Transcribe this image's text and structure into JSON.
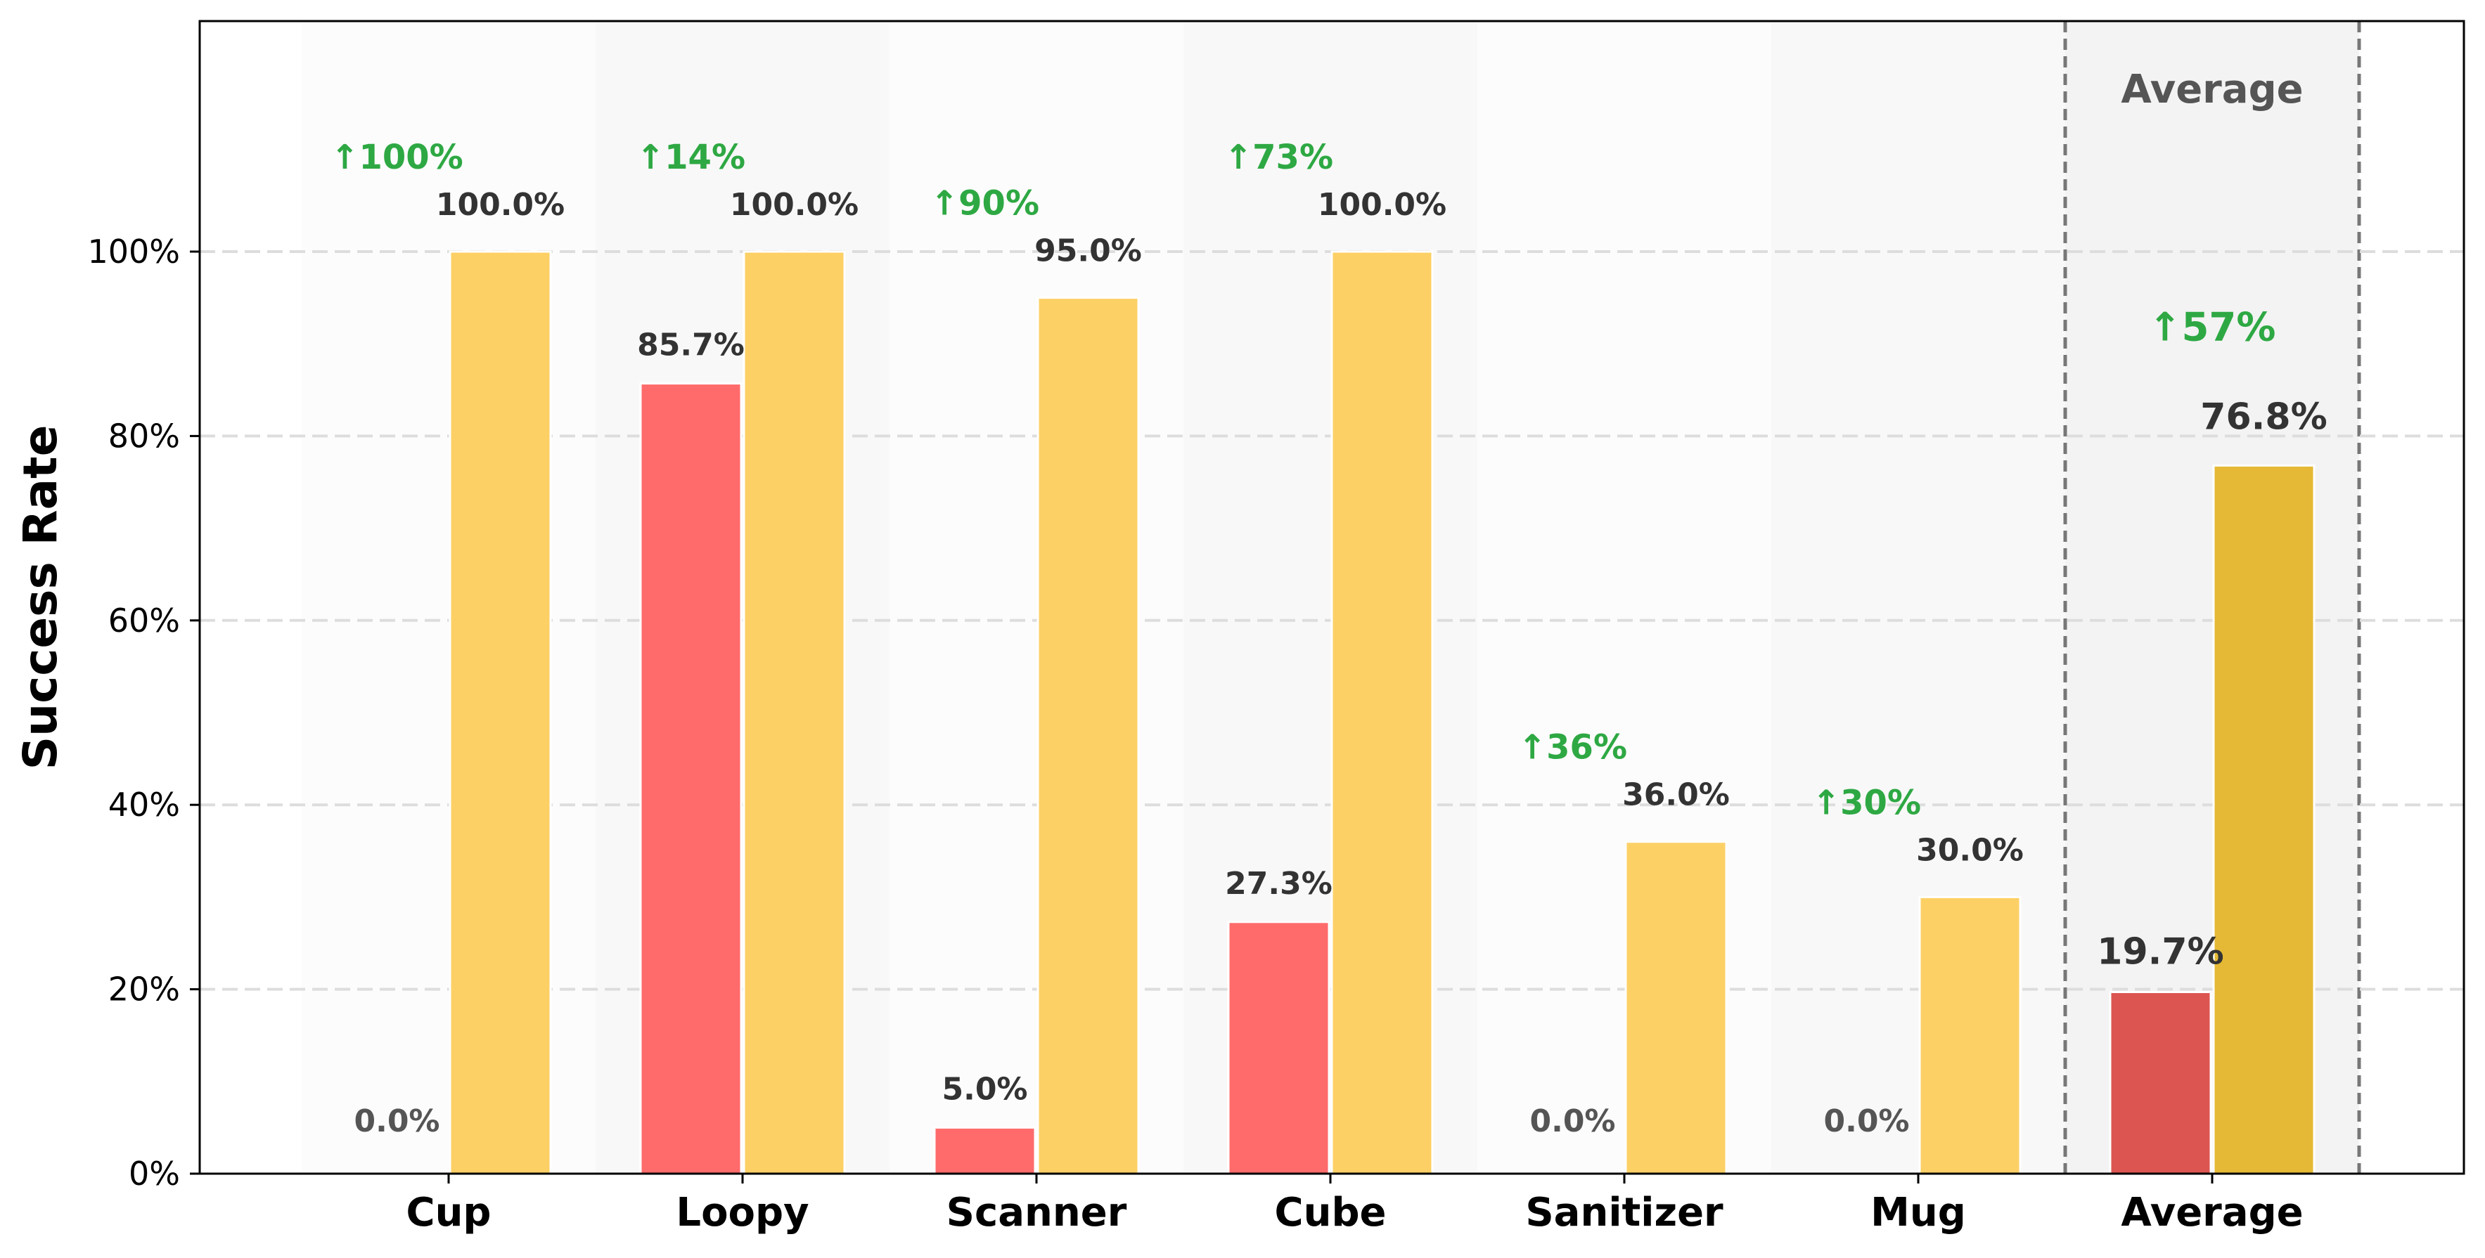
{
  "chart_data": {
    "type": "bar",
    "title": "",
    "xlabel": "",
    "ylabel": "Success Rate",
    "ylim": [
      0,
      125
    ],
    "yticks": [
      0,
      20,
      40,
      60,
      80,
      100
    ],
    "ytick_labels": [
      "0%",
      "20%",
      "40%",
      "60%",
      "80%",
      "100%"
    ],
    "grid": "horizontal-dashed",
    "legend": "none",
    "categories": [
      "Cup",
      "Loopy",
      "Scanner",
      "Cube",
      "Sanitizer",
      "Mug",
      "Average"
    ],
    "series": [
      {
        "name": "baseline",
        "values": [
          0.0,
          85.7,
          5.0,
          27.3,
          0.0,
          0.0,
          19.7
        ],
        "labels": [
          "0.0%",
          "85.7%",
          "5.0%",
          "27.3%",
          "0.0%",
          "0.0%",
          "19.7%"
        ]
      },
      {
        "name": "improved",
        "values": [
          100.0,
          100.0,
          95.0,
          100.0,
          36.0,
          30.0,
          76.8
        ],
        "labels": [
          "100.0%",
          "100.0%",
          "95.0%",
          "100.0%",
          "36.0%",
          "30.0%",
          "76.8%"
        ]
      }
    ],
    "improvements": [
      "↑100%",
      "↑14%",
      "↑90%",
      "↑73%",
      "↑36%",
      "↑30%",
      "↑57%"
    ],
    "highlight": {
      "category": "Average",
      "title": "Average"
    },
    "colors": {
      "baseline": "#FF6B6B",
      "improved": "#FDD066",
      "baseline_average": "#DC5550",
      "improved_average": "#E5B935",
      "improvement_text": "#2EA843",
      "value_text": "#333333",
      "zero_text": "#555555",
      "grid": "#dddddd",
      "highlight_bg": "#f3f3f3",
      "highlight_border": "#777777"
    }
  }
}
